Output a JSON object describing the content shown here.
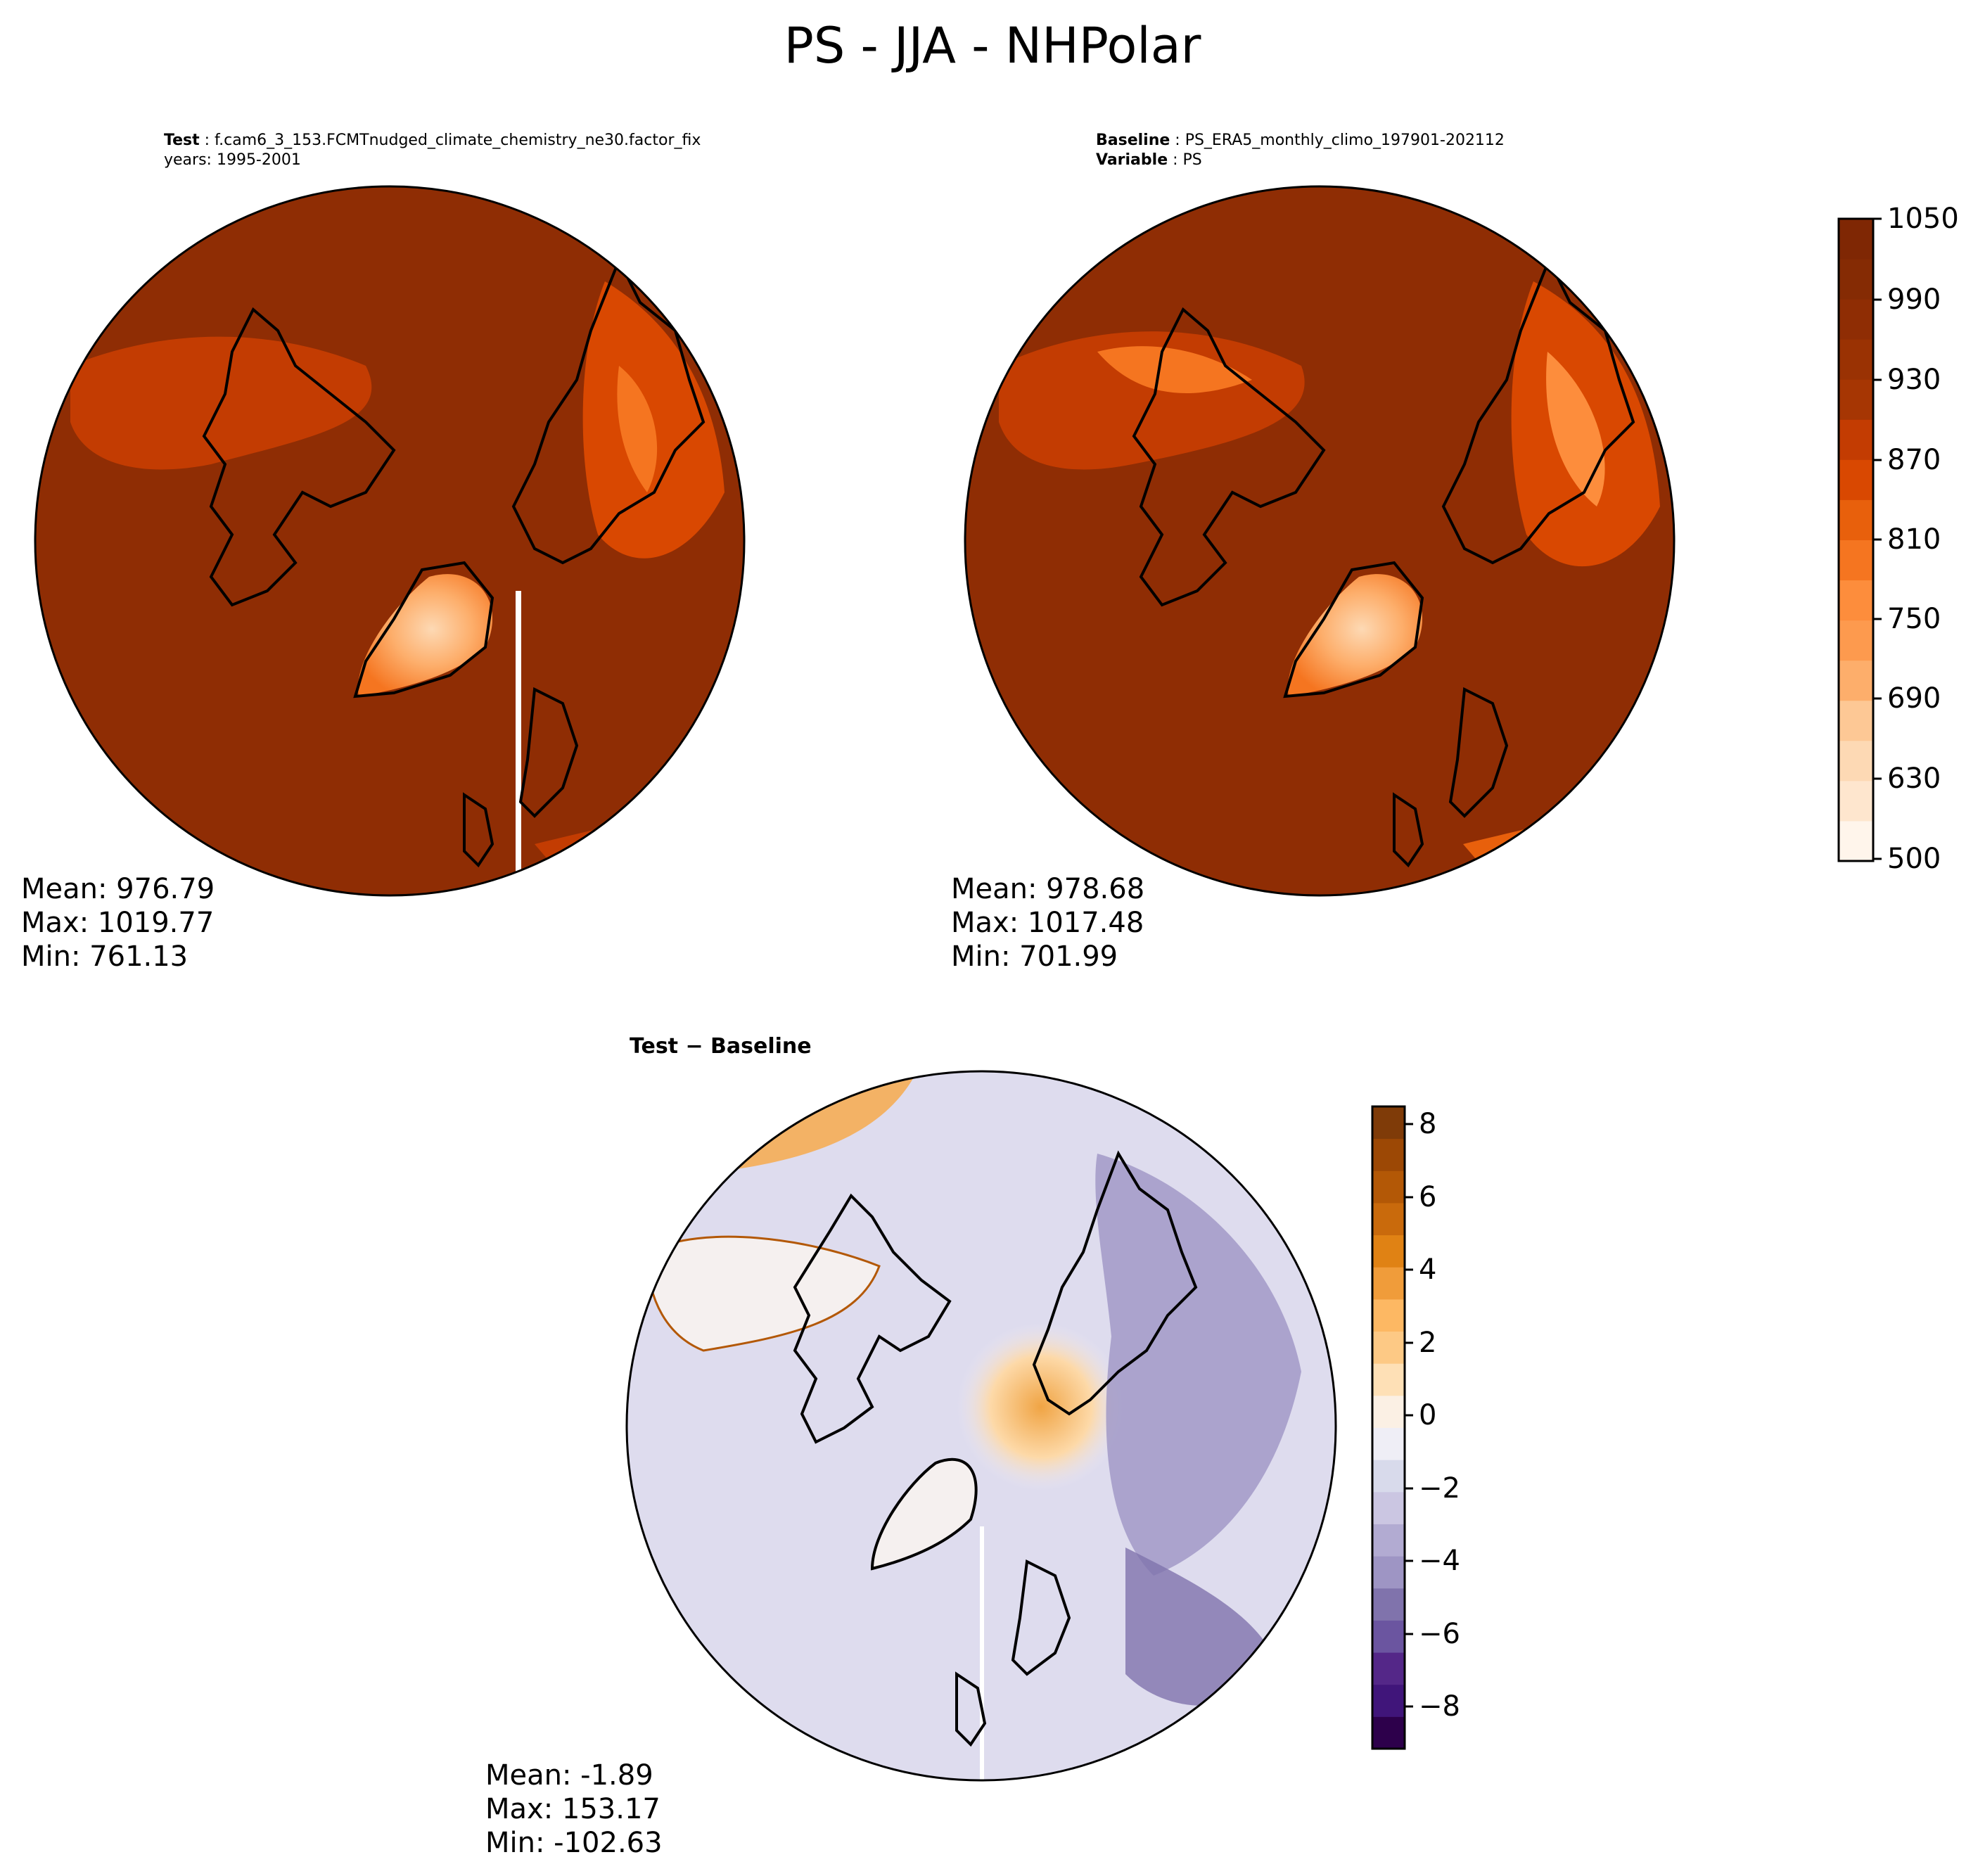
{
  "figure": {
    "title": "PS - JJA - NHPolar"
  },
  "panels": {
    "test": {
      "header_label": "Test",
      "header_value": "f.cam6_3_153.FCMTnudged_climate_chemistry_ne30.factor_fix",
      "years_line": "years: 1995-2001",
      "mean": "Mean: 976.79",
      "max": "Max: 1019.77",
      "min": "Min: 761.13"
    },
    "baseline": {
      "header_label": "Baseline",
      "header_value": "PS_ERA5_monthly_climo_197901-202112",
      "variable_label": "Variable",
      "variable_value": "PS",
      "mean": "Mean: 978.68",
      "max": "Max: 1017.48",
      "min": "Min: 701.99"
    },
    "difference": {
      "title": "Test − Baseline",
      "mean": "Mean: -1.89",
      "max": "Max: 153.17",
      "min": "Min: -102.63"
    }
  },
  "colorbars": {
    "ps": {
      "ticks": [
        "1050",
        "990",
        "930",
        "870",
        "810",
        "750",
        "690",
        "630",
        "500"
      ],
      "colors": [
        "#fff5eb",
        "#fee6ce",
        "#fdd9b4",
        "#fdc895",
        "#fdae6b",
        "#fd9a4e",
        "#fd8d3c",
        "#f57520",
        "#e8600c",
        "#d94801",
        "#c33c02",
        "#a63603",
        "#9a3203",
        "#8f2d04",
        "#852b04",
        "#7f2704"
      ]
    },
    "diff": {
      "ticks": [
        "8",
        "6",
        "4",
        "2",
        "0",
        "−2",
        "−4",
        "−6",
        "−8"
      ],
      "colors": [
        "#2d004b",
        "#40157a",
        "#542788",
        "#6b55a0",
        "#8073ac",
        "#9e95c4",
        "#b2abd2",
        "#cbc6e2",
        "#d8daeb",
        "#efeef6",
        "#fbf0e4",
        "#fee0b6",
        "#fdc985",
        "#fdb863",
        "#f09c3a",
        "#e08214",
        "#c96a0c",
        "#b35806",
        "#9c4805",
        "#7f3b08"
      ]
    }
  },
  "map_colors": {
    "ocean_ps": "#8f2d04",
    "highland_ps": "#c33c02",
    "greenland_ps": "#fd9a4e",
    "greenland_top_ps": "#fdc895",
    "diff_ocean": "#dedcee",
    "diff_positive": "#fdc985",
    "coastline": "#000000"
  }
}
